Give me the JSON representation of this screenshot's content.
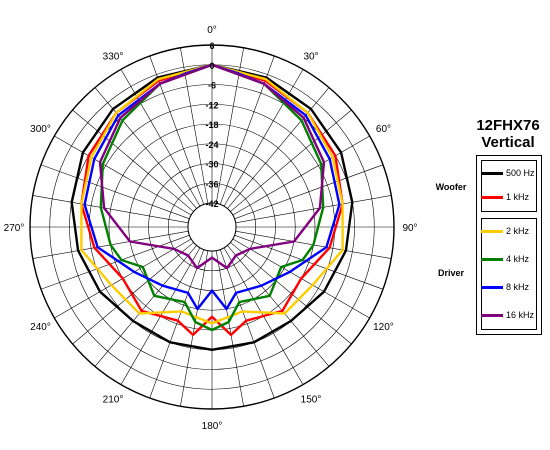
{
  "chart_data": {
    "type": "polar-line",
    "title_line1": "12FHX76",
    "title_line2": "Vertical",
    "radial_ticks": [
      "6",
      "0",
      "-6",
      "-12",
      "-18",
      "-24",
      "-30",
      "-36",
      "-42"
    ],
    "angle_labels": [
      {
        "angle": 0,
        "label": "0°"
      },
      {
        "angle": 30,
        "label": "30°"
      },
      {
        "angle": 60,
        "label": "60°"
      },
      {
        "angle": 90,
        "label": "90°"
      },
      {
        "angle": 120,
        "label": "120°"
      },
      {
        "angle": 150,
        "label": "150°"
      },
      {
        "angle": 180,
        "label": "180°"
      },
      {
        "angle": 210,
        "label": "210°"
      },
      {
        "angle": 240,
        "label": "240°"
      },
      {
        "angle": 270,
        "label": "270°"
      },
      {
        "angle": 300,
        "label": "300°"
      },
      {
        "angle": 330,
        "label": "330°"
      }
    ],
    "legend_groups": [
      {
        "label": "Woofer",
        "series_index": [
          0,
          1
        ]
      },
      {
        "label": "Driver",
        "series_index": [
          2,
          3,
          4,
          5
        ]
      }
    ],
    "series": [
      {
        "name": "500 Hz",
        "color": "#000000",
        "angles": [
          0,
          20,
          40,
          60,
          80,
          100,
          120,
          140,
          160,
          180,
          200,
          220,
          240,
          260,
          280,
          300,
          320,
          340,
          360
        ],
        "values": [
          0,
          -1,
          -2.5,
          -4,
          -6,
          -8,
          -10,
          -12,
          -12,
          -12,
          -12,
          -12,
          -10,
          -8,
          -6,
          -4,
          -2.5,
          -1,
          0
        ]
      },
      {
        "name": "1 kHz",
        "color": "#ff0000",
        "angles": [
          0,
          20,
          40,
          60,
          80,
          100,
          120,
          140,
          160,
          170,
          180,
          190,
          200,
          220,
          240,
          260,
          280,
          300,
          320,
          340,
          360
        ],
        "values": [
          0,
          -2,
          -4,
          -6,
          -9,
          -13,
          -18,
          -16,
          -19,
          -16,
          -22,
          -16,
          -19,
          -16,
          -18,
          -13,
          -9,
          -6,
          -4,
          -2,
          0
        ]
      },
      {
        "name": "2 kHz",
        "color": "#ffcc00",
        "angles": [
          0,
          20,
          40,
          60,
          80,
          100,
          120,
          140,
          160,
          180,
          200,
          220,
          240,
          260,
          280,
          300,
          320,
          340,
          360
        ],
        "values": [
          0,
          -1.5,
          -4,
          -7,
          -9,
          -9,
          -14,
          -15,
          -22,
          -20,
          -22,
          -15,
          -14,
          -9,
          -9,
          -7,
          -4,
          -1.5,
          0
        ]
      },
      {
        "name": "4 kHz",
        "color": "#008000",
        "angles": [
          0,
          20,
          40,
          60,
          80,
          100,
          110,
          120,
          140,
          160,
          170,
          180,
          190,
          200,
          220,
          240,
          250,
          260,
          280,
          300,
          320,
          340,
          360
        ],
        "values": [
          0,
          -3,
          -7,
          -11,
          -15,
          -18,
          -20,
          -25,
          -22,
          -25,
          -20,
          -18,
          -20,
          -25,
          -22,
          -25,
          -20,
          -18,
          -15,
          -11,
          -7,
          -3,
          0
        ]
      },
      {
        "name": "8 kHz",
        "color": "#0000ff",
        "angles": [
          0,
          10,
          20,
          40,
          60,
          80,
          100,
          120,
          140,
          160,
          170,
          180,
          190,
          200,
          220,
          240,
          260,
          280,
          300,
          320,
          340,
          350,
          360
        ],
        "values": [
          0,
          -2,
          -3,
          -5,
          -8,
          -10,
          -14,
          -22,
          -26,
          -28,
          -24,
          -30,
          -24,
          -28,
          -26,
          -22,
          -14,
          -10,
          -8,
          -5,
          -3,
          -2,
          0
        ]
      },
      {
        "name": "16 kHz",
        "color": "#800080",
        "angles": [
          0,
          20,
          40,
          60,
          80,
          100,
          120,
          140,
          160,
          180,
          200,
          220,
          240,
          260,
          280,
          300,
          320,
          340,
          360
        ],
        "values": [
          0,
          -3,
          -6,
          -10,
          -16,
          -24,
          -36,
          -38,
          -36,
          -40,
          -36,
          -38,
          -36,
          -24,
          -16,
          -10,
          -6,
          -3,
          0
        ]
      }
    ]
  }
}
